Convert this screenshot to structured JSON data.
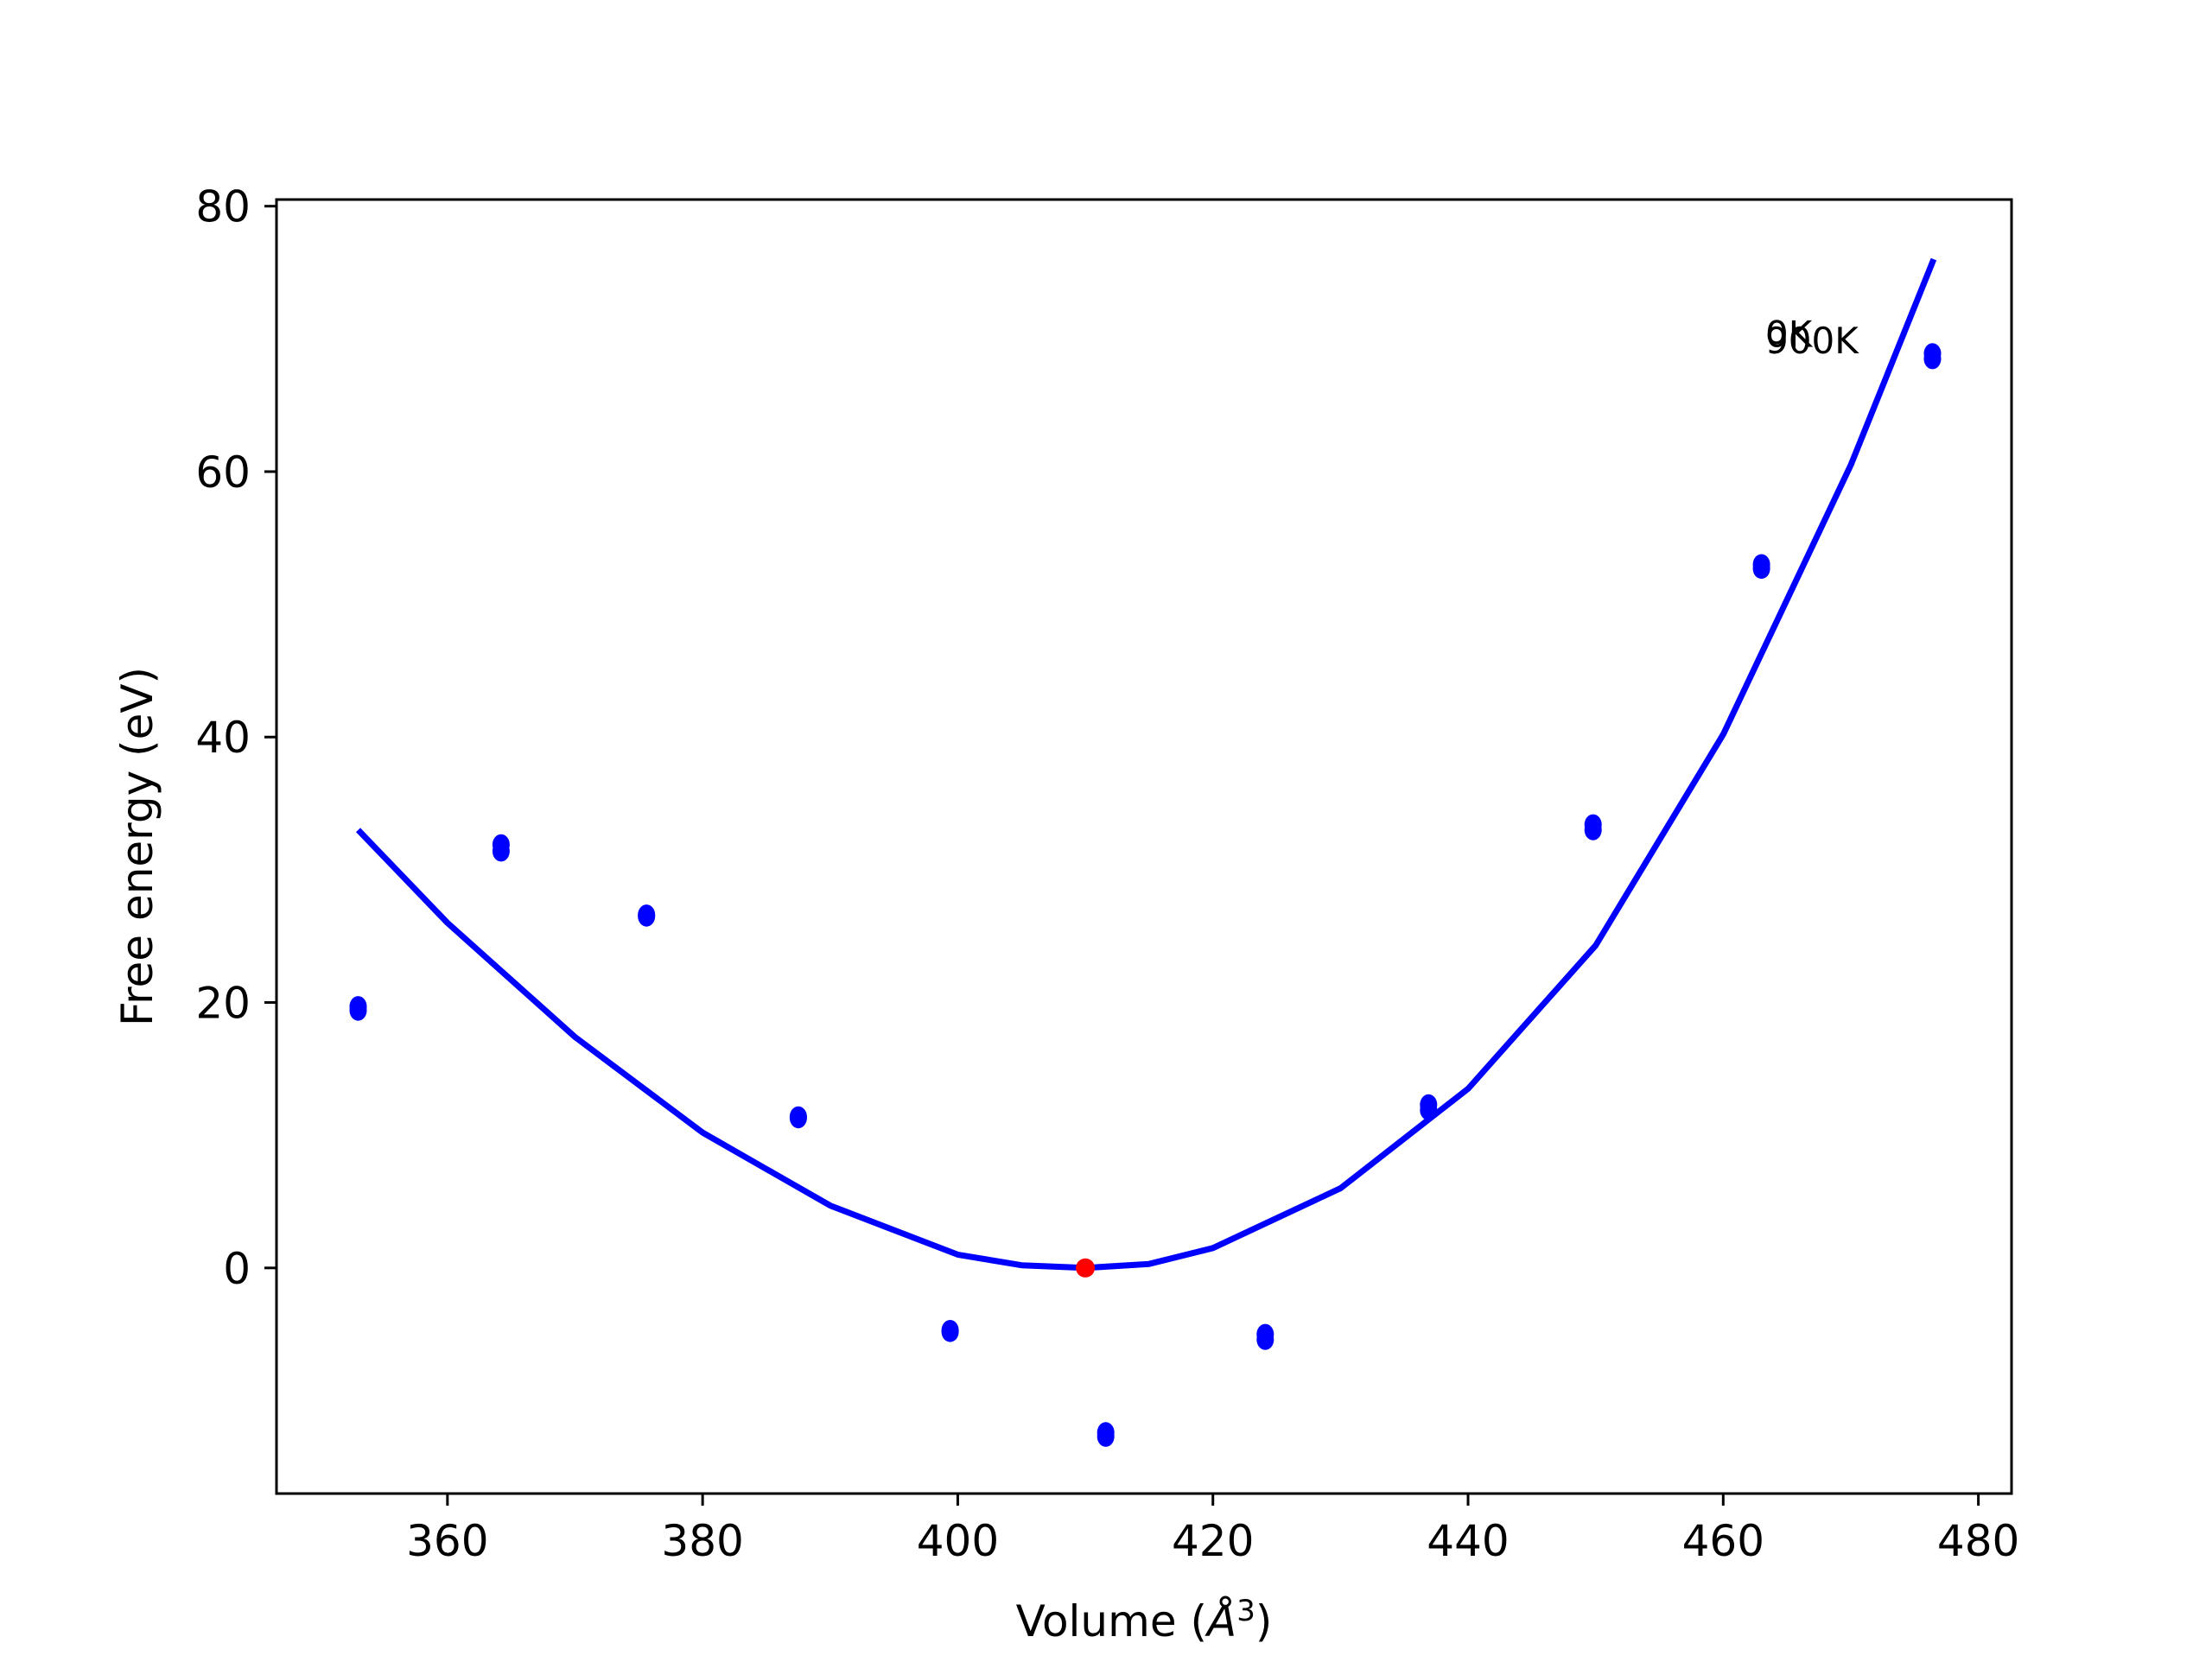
{
  "chart_data": {
    "type": "scatter",
    "xlabel": "Volume (Å$^3$)",
    "xlabel_parts": {
      "text": "Volume (",
      "italic": "Å",
      "sup": "3",
      "close": ")"
    },
    "ylabel": "Free energy (eV)",
    "xlim": [
      346.6,
      482.6
    ],
    "ylim": [
      -17,
      80.5
    ],
    "xticks": [
      360,
      380,
      400,
      420,
      440,
      460,
      480
    ],
    "yticks": [
      0,
      20,
      40,
      60,
      80
    ],
    "grid": false,
    "colors": {
      "points": "#0000ff",
      "fit_line": "#0000ff",
      "minimum": "#ff0000",
      "axes": "#000000"
    },
    "series": [
      {
        "name": "0K",
        "kind": "points",
        "x": [
          353.0,
          364.2,
          375.6,
          387.5,
          399.4,
          411.6,
          424.1,
          436.9,
          449.8,
          463.0,
          476.4
        ],
        "y": [
          19.7,
          31.9,
          26.6,
          11.4,
          -4.7,
          -12.4,
          -5.0,
          12.3,
          33.4,
          53.0,
          68.9
        ]
      },
      {
        "name": "900K",
        "kind": "points",
        "x": [
          353.0,
          364.2,
          375.6,
          387.5,
          399.4,
          411.6,
          424.1,
          436.9,
          449.8,
          463.0,
          476.4
        ],
        "y": [
          19.4,
          31.4,
          26.5,
          11.3,
          -4.8,
          -12.7,
          -5.4,
          11.9,
          33.0,
          52.7,
          68.5
        ]
      },
      {
        "name": "fit",
        "kind": "line",
        "x": [
          353,
          360,
          370,
          380,
          390,
          400,
          405,
          410,
          415,
          420,
          430,
          440,
          450,
          460,
          470,
          476.5
        ],
        "y": [
          33.0,
          26.0,
          17.4,
          10.2,
          4.7,
          1.0,
          0.2,
          0.0,
          0.3,
          1.5,
          6.0,
          13.5,
          24.3,
          40.2,
          60.5,
          76.0
        ]
      },
      {
        "name": "minimum",
        "kind": "marker",
        "x": [
          410.0
        ],
        "y": [
          0.0
        ]
      }
    ],
    "annotations": [
      {
        "text": "0K",
        "x": 463.3,
        "y": 69.4
      },
      {
        "text": "900K",
        "x": 463.3,
        "y": 68.9
      }
    ]
  }
}
